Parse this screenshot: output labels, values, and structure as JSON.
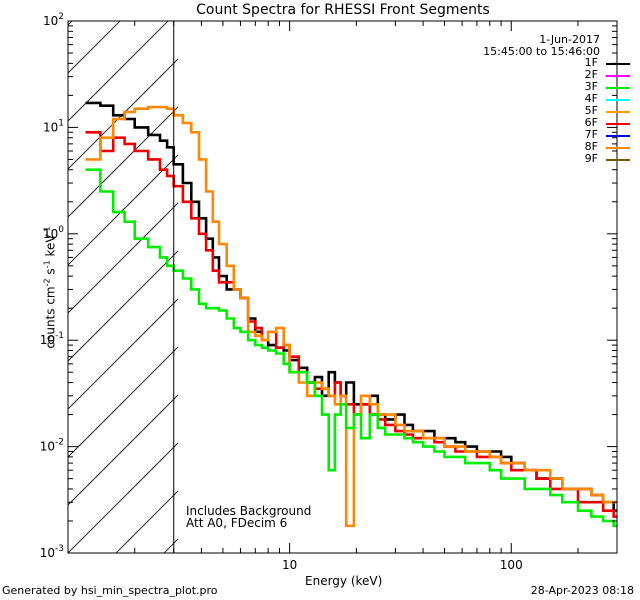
{
  "footer": {
    "generated": "Generated by hsi_min_spectra_plot.pro",
    "datetime": "28-Apr-2023 08:18"
  },
  "chart_data": {
    "type": "line",
    "title": "Count Spectra for RHESSI Front Segments",
    "xlabel": "Energy (keV)",
    "ylabel": "counts cm-2 s-1 keV-1",
    "xscale": "log",
    "yscale": "log",
    "xlim": [
      1.0,
      300.0
    ],
    "ylim": [
      0.001,
      100.0
    ],
    "x_ticks": [
      "10",
      "100"
    ],
    "y_ticks": [
      "10-3",
      "10-2",
      "10-1",
      "100",
      "101",
      "102"
    ],
    "hatched_region_max_keV": 3.0,
    "annotations": {
      "date": "1-Jun-2017",
      "time_range": "15:45:00 to 15:46:00",
      "background_note": "Includes Background",
      "attenuator_note": "Att A0, FDecim 6"
    },
    "legend": [
      {
        "name": "1F",
        "color": "#000000"
      },
      {
        "name": "2F",
        "color": "#ff00ff"
      },
      {
        "name": "3F",
        "color": "#00ee00"
      },
      {
        "name": "4F",
        "color": "#00ffff"
      },
      {
        "name": "5F",
        "color": "#ff9900"
      },
      {
        "name": "6F",
        "color": "#ee0000"
      },
      {
        "name": "7F",
        "color": "#0000dd"
      },
      {
        "name": "8F",
        "color": "#ff8800"
      },
      {
        "name": "9F",
        "color": "#7a5a00"
      }
    ],
    "series": [
      {
        "name": "1F",
        "color": "#000000",
        "x": [
          1.2,
          1.4,
          1.6,
          1.8,
          2.0,
          2.3,
          2.6,
          2.8,
          3.0,
          3.3,
          3.6,
          3.9,
          4.2,
          4.5,
          4.8,
          5.2,
          5.6,
          6.0,
          6.5,
          7.0,
          7.5,
          8.0,
          8.7,
          9.4,
          10.0,
          11.0,
          12.0,
          13.0,
          14.0,
          15.0,
          16.0,
          17.0,
          18.0,
          19.5,
          21.0,
          23.0,
          25.0,
          27.0,
          30.0,
          33.0,
          36.0,
          40.0,
          45.0,
          50.0,
          56.0,
          62.0,
          70.0,
          80.0,
          90.0,
          100.0,
          115.0,
          130.0,
          150.0,
          170.0,
          200.0,
          230.0,
          260.0,
          290.0
        ],
        "y": [
          17.0,
          16.0,
          13.0,
          12.0,
          10.0,
          8.5,
          7.5,
          6.5,
          4.5,
          3.0,
          2.0,
          1.4,
          0.9,
          0.6,
          0.4,
          0.3,
          0.3,
          0.25,
          0.16,
          0.12,
          0.1,
          0.09,
          0.085,
          0.08,
          0.065,
          0.055,
          0.04,
          0.045,
          0.03,
          0.05,
          0.04,
          0.03,
          0.04,
          0.025,
          0.025,
          0.03,
          0.02,
          0.018,
          0.02,
          0.016,
          0.014,
          0.014,
          0.012,
          0.012,
          0.011,
          0.01,
          0.009,
          0.009,
          0.008,
          0.007,
          0.006,
          0.005,
          0.005,
          0.004,
          0.004,
          0.0035,
          0.003,
          0.0025
        ]
      },
      {
        "name": "6F",
        "color": "#ee0000",
        "x": [
          1.2,
          1.4,
          1.6,
          1.8,
          2.0,
          2.3,
          2.6,
          2.8,
          3.0,
          3.3,
          3.6,
          3.9,
          4.2,
          4.5,
          4.8,
          5.2,
          5.6,
          6.0,
          6.5,
          7.0,
          7.5,
          8.0,
          8.7,
          9.4,
          10.0,
          11.0,
          12.0,
          13.0,
          14.0,
          15.0,
          16.0,
          17.0,
          18.0,
          19.5,
          21.0,
          23.0,
          25.0,
          27.0,
          30.0,
          33.0,
          36.0,
          40.0,
          45.0,
          50.0,
          56.0,
          62.0,
          70.0,
          80.0,
          90.0,
          100.0,
          115.0,
          130.0,
          150.0,
          170.0,
          200.0,
          230.0,
          260.0,
          290.0
        ],
        "y": [
          9.0,
          6.0,
          8.0,
          7.0,
          6.0,
          5.0,
          4.0,
          3.5,
          2.8,
          2.0,
          1.4,
          1.0,
          0.7,
          0.45,
          0.35,
          0.35,
          0.3,
          0.25,
          0.15,
          0.13,
          0.1,
          0.12,
          0.085,
          0.09,
          0.07,
          0.05,
          0.04,
          0.035,
          0.035,
          0.03,
          0.04,
          0.03,
          0.025,
          0.02,
          0.025,
          0.02,
          0.018,
          0.016,
          0.014,
          0.013,
          0.012,
          0.012,
          0.011,
          0.01,
          0.009,
          0.009,
          0.008,
          0.008,
          0.007,
          0.006,
          0.006,
          0.005,
          0.004,
          0.004,
          0.003,
          0.003,
          0.0025,
          0.0022
        ]
      },
      {
        "name": "8F",
        "color": "#ff8800",
        "x": [
          1.2,
          1.4,
          1.6,
          1.8,
          2.0,
          2.3,
          2.6,
          2.8,
          3.0,
          3.3,
          3.6,
          3.9,
          4.2,
          4.5,
          4.8,
          5.2,
          5.6,
          6.0,
          6.5,
          7.0,
          7.5,
          8.0,
          8.7,
          9.4,
          10.0,
          11.0,
          12.0,
          13.0,
          14.0,
          15.0,
          16.0,
          17.0,
          18.0,
          19.5,
          21.0,
          23.0,
          25.0,
          27.0,
          30.0,
          33.0,
          36.0,
          40.0,
          45.0,
          50.0,
          56.0,
          62.0,
          70.0,
          80.0,
          90.0,
          100.0,
          115.0,
          130.0,
          150.0,
          170.0,
          200.0,
          230.0,
          260.0,
          290.0
        ],
        "y": [
          5.0,
          8.0,
          12.0,
          14.0,
          15.0,
          15.5,
          15.5,
          15.0,
          13.0,
          11.0,
          9.0,
          5.0,
          2.5,
          1.3,
          0.8,
          0.5,
          0.3,
          0.25,
          0.12,
          0.11,
          0.1,
          0.12,
          0.13,
          0.09,
          0.05,
          0.04,
          0.03,
          0.04,
          0.035,
          0.03,
          0.025,
          0.03,
          0.0018,
          0.02,
          0.03,
          0.025,
          0.02,
          0.02,
          0.016,
          0.014,
          0.014,
          0.012,
          0.012,
          0.01,
          0.01,
          0.009,
          0.009,
          0.008,
          0.007,
          0.007,
          0.006,
          0.006,
          0.005,
          0.004,
          0.004,
          0.0035,
          0.003,
          0.003
        ]
      },
      {
        "name": "3F",
        "color": "#00ee00",
        "x": [
          1.2,
          1.4,
          1.6,
          1.8,
          2.0,
          2.3,
          2.6,
          2.8,
          3.0,
          3.3,
          3.6,
          3.9,
          4.2,
          4.5,
          4.8,
          5.2,
          5.6,
          6.0,
          6.5,
          7.0,
          7.5,
          8.0,
          8.7,
          9.4,
          10.0,
          11.0,
          12.0,
          13.0,
          14.0,
          15.0,
          16.0,
          17.0,
          18.0,
          19.5,
          21.0,
          23.0,
          25.0,
          27.0,
          30.0,
          33.0,
          36.0,
          40.0,
          45.0,
          50.0,
          56.0,
          62.0,
          70.0,
          80.0,
          90.0,
          100.0,
          115.0,
          130.0,
          150.0,
          170.0,
          200.0,
          230.0,
          260.0,
          290.0
        ],
        "y": [
          4.0,
          2.5,
          1.6,
          1.3,
          0.9,
          0.75,
          0.6,
          0.5,
          0.45,
          0.38,
          0.3,
          0.22,
          0.2,
          0.2,
          0.19,
          0.16,
          0.13,
          0.12,
          0.1,
          0.09,
          0.085,
          0.08,
          0.075,
          0.06,
          0.05,
          0.05,
          0.04,
          0.03,
          0.02,
          0.006,
          0.02,
          0.025,
          0.015,
          0.02,
          0.012,
          0.02,
          0.015,
          0.013,
          0.013,
          0.012,
          0.011,
          0.01,
          0.009,
          0.008,
          0.008,
          0.007,
          0.007,
          0.006,
          0.005,
          0.005,
          0.004,
          0.004,
          0.0035,
          0.003,
          0.0025,
          0.0022,
          0.002,
          0.0018
        ]
      }
    ]
  }
}
